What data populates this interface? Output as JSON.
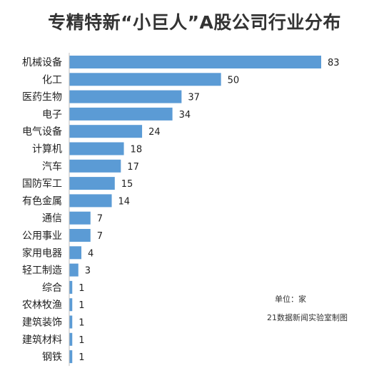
{
  "chart_data": {
    "type": "bar",
    "orientation": "horizontal",
    "title": "专精特新“小巨人”A股公司行业分布",
    "categories": [
      "机械设备",
      "化工",
      "医药生物",
      "电子",
      "电气设备",
      "计算机",
      "汽车",
      "国防军工",
      "有色金属",
      "通信",
      "公用事业",
      "家用电器",
      "轻工制造",
      "综合",
      "农林牧渔",
      "建筑装饰",
      "建筑材料",
      "钢铁"
    ],
    "values": [
      83,
      50,
      37,
      34,
      24,
      18,
      17,
      15,
      14,
      7,
      7,
      4,
      3,
      1,
      1,
      1,
      1,
      1
    ],
    "xlim": [
      0,
      83
    ],
    "grid": false,
    "legend": "none"
  },
  "notes": {
    "unit": "单位：家",
    "source": "21数据新闻实验室制图"
  },
  "colors": {
    "bar": "#5b9bd5",
    "axis": "#bfbfbf"
  }
}
